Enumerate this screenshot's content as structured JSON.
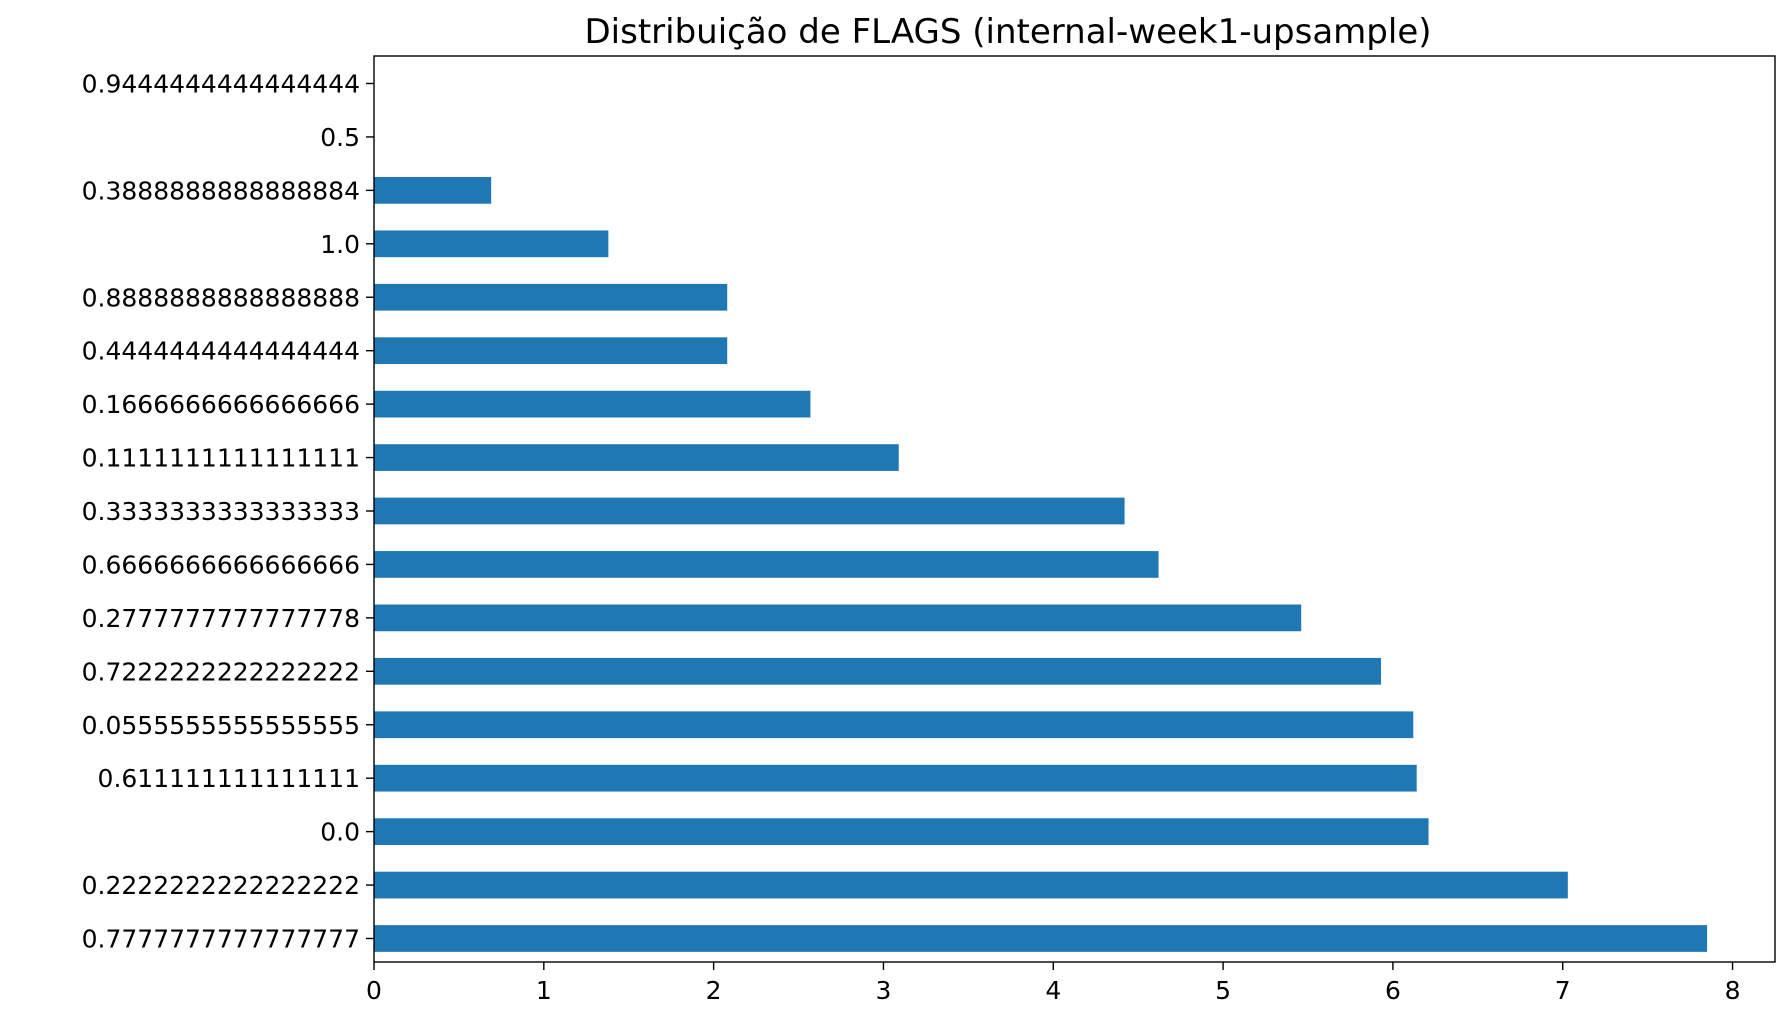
{
  "chart_data": {
    "type": "bar",
    "orientation": "horizontal",
    "title": "Distribuição de FLAGS (internal-week1-upsample)",
    "xlabel": "",
    "ylabel": "",
    "xlim": [
      0,
      8.25
    ],
    "x_ticks": [
      "0",
      "1",
      "2",
      "3",
      "4",
      "5",
      "6",
      "7",
      "8"
    ],
    "categories": [
      "0.7777777777777777",
      "0.2222222222222222",
      "0.0",
      "0.611111111111111",
      "0.0555555555555555",
      "0.7222222222222222",
      "0.2777777777777778",
      "0.6666666666666666",
      "0.3333333333333333",
      "0.1111111111111111",
      "0.1666666666666666",
      "0.4444444444444444",
      "0.8888888888888888",
      "1.0",
      "0.3888888888888884",
      "0.5",
      "0.9444444444444444"
    ],
    "values": [
      7.85,
      7.03,
      6.21,
      6.14,
      6.12,
      5.93,
      5.46,
      4.62,
      4.42,
      3.09,
      2.57,
      2.08,
      2.08,
      1.38,
      0.69,
      0.0,
      0.0
    ],
    "color": "#1f77b4",
    "grid": false,
    "legend": "none"
  }
}
